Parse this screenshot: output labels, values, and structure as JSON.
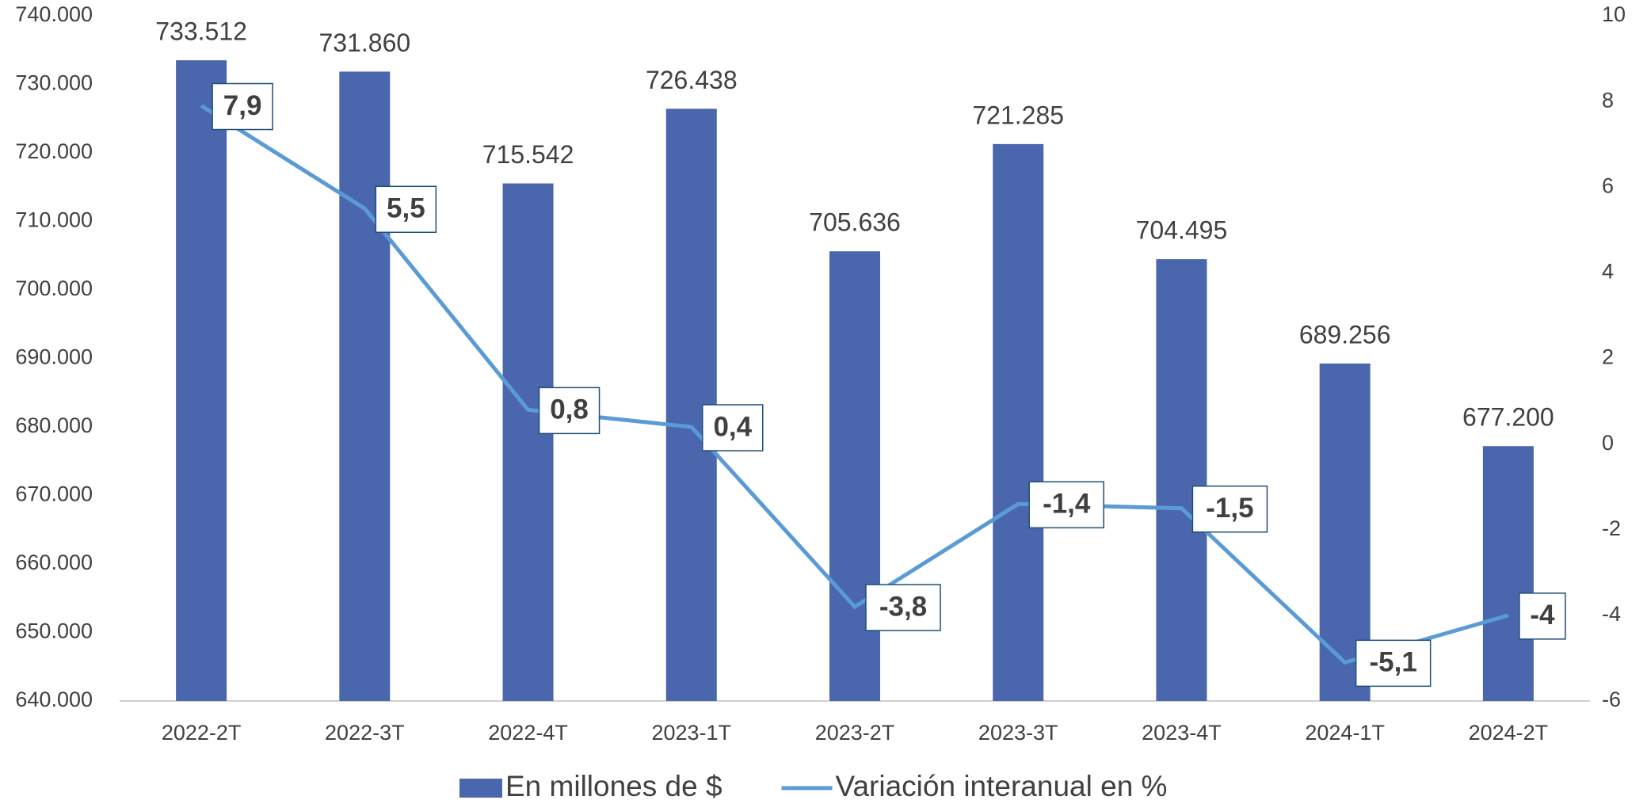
{
  "chart_data": {
    "type": "bar",
    "categories": [
      "2022-2T",
      "2022-3T",
      "2022-4T",
      "2023-1T",
      "2023-2T",
      "2023-3T",
      "2023-4T",
      "2024-1T",
      "2024-2T"
    ],
    "series": [
      {
        "name": "En millones de $",
        "type": "bar",
        "color": "#4a66ad",
        "values": [
          733512,
          731860,
          715542,
          726438,
          705636,
          721285,
          704495,
          689256,
          677200
        ],
        "value_labels": [
          "733.512",
          "731.860",
          "715.542",
          "726.438",
          "705.636",
          "721.285",
          "704.495",
          "689.256",
          "677.200"
        ]
      },
      {
        "name": "Variación interanual en %",
        "type": "line",
        "axis": "y2",
        "color": "#5b9bd5",
        "values": [
          7.9,
          5.5,
          0.8,
          0.4,
          -3.8,
          -1.4,
          -1.5,
          -5.1,
          -4
        ],
        "value_labels": [
          "7,9",
          "5,5",
          "0,8",
          "0,4",
          "-3,8",
          "-1,4",
          "-1,5",
          "-5,1",
          "-4"
        ]
      }
    ],
    "ylim": [
      640000,
      740000
    ],
    "yticks": [
      {
        "value": 640000,
        "label": "640.000"
      },
      {
        "value": 650000,
        "label": "650.000"
      },
      {
        "value": 660000,
        "label": "660.000"
      },
      {
        "value": 670000,
        "label": "670.000"
      },
      {
        "value": 680000,
        "label": "680.000"
      },
      {
        "value": 690000,
        "label": "690.000"
      },
      {
        "value": 700000,
        "label": "700.000"
      },
      {
        "value": 710000,
        "label": "710.000"
      },
      {
        "value": 720000,
        "label": "720.000"
      },
      {
        "value": 730000,
        "label": "730.000"
      },
      {
        "value": 740000,
        "label": "740.000"
      }
    ],
    "y2lim": [
      -6,
      10
    ],
    "y2ticks": [
      -6,
      -4,
      -2,
      0,
      2,
      4,
      6,
      8,
      10
    ],
    "legend": "bottom"
  }
}
